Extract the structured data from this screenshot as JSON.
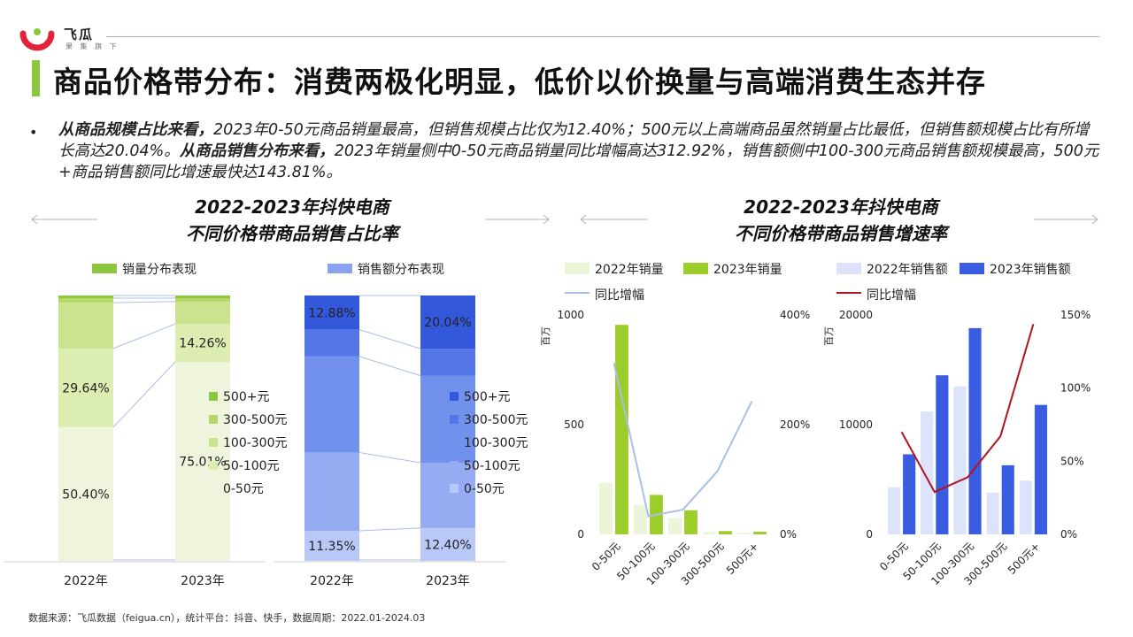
{
  "header": {
    "brand": "飞瓜",
    "brand_sub": "果 集 旗 下",
    "title": "商品价格带分布：消费两极化明显，低价以价换量与高端消费生态并存"
  },
  "bullet": {
    "p1_bold": "从商品规模占比来看，",
    "p1": "2023年0-50元商品销量最高，但销售规模占比仅为12.40%；500元以上高端商品虽然销量占比最低，但销售额规模占比有所增长高达20.04%。",
    "p2_bold": "从商品销售分布来看，",
    "p2": "2023年销量侧中0-50元商品销量同比增幅高达312.92%，销售额侧中100-300元商品销售额规模最高，500元+商品销售额同比增速最快达143.81%。"
  },
  "left_title": {
    "line1": "2022-2023年抖快电商",
    "line2": "不同价格带商品销售占比率"
  },
  "right_title": {
    "line1": "2022-2023年抖快电商",
    "line2": "不同价格带商品销售增速率"
  },
  "source": "数据来源：飞瓜数据（feigua.cn），统计平台：抖音、快手，数据周期：2022.01-2024.03",
  "colors": {
    "green_bands": [
      "#eef5dc",
      "#dcedb2",
      "#cbe38f",
      "#b6d86a",
      "#8dc63f"
    ],
    "blue_bands": [
      "#b9c8f7",
      "#95abf2",
      "#7291ec",
      "#5476e6",
      "#3358dc"
    ],
    "green_2022": "#ebf5d8",
    "green_2023": "#9ccd2a",
    "blue_2022": "#dce3fa",
    "blue_2023": "#3a5ce0",
    "line_blue": "#a9bfe8",
    "line_red": "#b0141e",
    "accent": "#8dc63f"
  },
  "chart_data": [
    {
      "type": "bar",
      "stacked": true,
      "title": "销量分布表现",
      "categories": [
        "2022年",
        "2023年"
      ],
      "legend": [
        "500+元",
        "300-500元",
        "100-300元",
        "50-100元",
        "0-50元"
      ],
      "series": [
        {
          "name": "0-50元",
          "values": [
            50.4,
            75.01
          ]
        },
        {
          "name": "50-100元",
          "values": [
            29.64,
            14.26
          ]
        },
        {
          "name": "100-300元",
          "values": [
            17.26,
            8.43
          ]
        },
        {
          "name": "300-500元",
          "values": [
            1.7,
            1.3
          ]
        },
        {
          "name": "500+元",
          "values": [
            1.0,
            1.0
          ]
        }
      ],
      "labels": {
        "2022年": [
          "50.40%",
          "29.64%"
        ],
        "2023年": [
          "75.01%",
          "14.26%"
        ]
      },
      "ylim": [
        0,
        100
      ]
    },
    {
      "type": "bar",
      "stacked": true,
      "title": "销售额分布表现",
      "categories": [
        "2022年",
        "2023年"
      ],
      "legend": [
        "500+元",
        "300-500元",
        "100-300元",
        "50-100元",
        "0-50元"
      ],
      "series": [
        {
          "name": "0-50元",
          "values": [
            11.35,
            12.4
          ]
        },
        {
          "name": "50-100元",
          "values": [
            29.5,
            24.6
          ]
        },
        {
          "name": "100-300元",
          "values": [
            36.2,
            32.8
          ]
        },
        {
          "name": "300-500元",
          "values": [
            10.07,
            10.16
          ]
        },
        {
          "name": "500+元",
          "values": [
            12.88,
            20.04
          ]
        }
      ],
      "labels": {
        "2022年": [
          "11.35%",
          "12.88%"
        ],
        "2023年": [
          "12.40%",
          "20.04%"
        ]
      },
      "ylim": [
        0,
        100
      ]
    },
    {
      "type": "bar",
      "title": "",
      "categories": [
        "0-50元",
        "50-100元",
        "100-300元",
        "300-500元",
        "500元+"
      ],
      "unit": "百万",
      "series": [
        {
          "name": "2022年销量",
          "values": [
            235,
            135,
            75,
            10,
            8
          ]
        },
        {
          "name": "2023年销量",
          "values": [
            955,
            180,
            110,
            15,
            12
          ]
        },
        {
          "name": "同比增幅",
          "axis": "right",
          "values": [
            312.92,
            33,
            45,
            115,
            243
          ]
        }
      ],
      "ylim": [
        0,
        1000
      ],
      "yticks": [
        0,
        500,
        1000
      ],
      "y2lim": [
        0,
        400
      ],
      "y2ticks": [
        "0%",
        "200%",
        "400%"
      ]
    },
    {
      "type": "bar",
      "title": "",
      "categories": [
        "0-50元",
        "50-100元",
        "100-300元",
        "300-500元",
        "500元+"
      ],
      "unit": "百万",
      "series": [
        {
          "name": "2022年销售额",
          "values": [
            4300,
            11200,
            13500,
            3800,
            4900
          ]
        },
        {
          "name": "2023年销售额",
          "values": [
            7300,
            14500,
            18800,
            6300,
            11800
          ]
        },
        {
          "name": "同比增幅",
          "axis": "right",
          "values": [
            70,
            29,
            39,
            67,
            143.81
          ]
        }
      ],
      "ylim": [
        0,
        20000
      ],
      "yticks": [
        0,
        10000,
        20000
      ],
      "y2lim": [
        0,
        150
      ],
      "y2ticks": [
        "0%",
        "50%",
        "100%",
        "150%"
      ]
    }
  ]
}
